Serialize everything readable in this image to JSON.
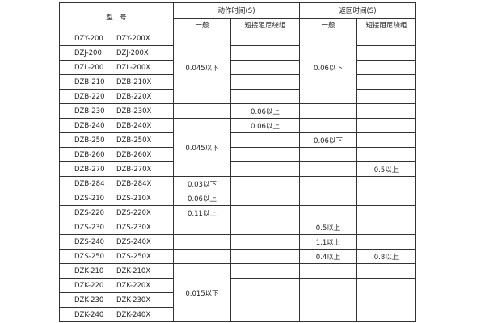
{
  "header": {
    "model": "型　号",
    "action_time": "动作时间(S)",
    "return_time": "返回时间(S)",
    "general": "一般",
    "short_damping": "短接阻尼绕组"
  },
  "rows": [
    {
      "models": [
        "DZY-200",
        "DZY-200X"
      ],
      "cells": [
        {
          "t": "0.045以下",
          "rs": 5
        },
        {
          "t": ""
        },
        {
          "t": "0.06以下",
          "rs": 5
        },
        {
          "t": ""
        }
      ]
    },
    {
      "models": [
        "DZJ-200",
        "DZJ-200X"
      ],
      "cells": [
        null,
        {
          "t": ""
        },
        null,
        {
          "t": ""
        }
      ]
    },
    {
      "models": [
        "DZL-200",
        "DZL-200X"
      ],
      "cells": [
        null,
        {
          "t": ""
        },
        null,
        {
          "t": ""
        }
      ]
    },
    {
      "models": [
        "DZB-210",
        "DZB-210X"
      ],
      "cells": [
        null,
        {
          "t": ""
        },
        null,
        {
          "t": ""
        }
      ]
    },
    {
      "models": [
        "DZB-220",
        "DZB-220X"
      ],
      "cells": [
        null,
        {
          "t": ""
        },
        null,
        {
          "t": ""
        }
      ]
    },
    {
      "models": [
        "DZB-230",
        "DZB-230X"
      ],
      "cells": [
        {
          "t": ""
        },
        {
          "t": "0.06以上"
        },
        {
          "t": ""
        },
        {
          "t": ""
        }
      ]
    },
    {
      "models": [
        "DZB-240",
        "DZB-240X"
      ],
      "cells": [
        {
          "t": "0.045以下",
          "rs": 4
        },
        {
          "t": "0.06以上"
        },
        {
          "t": ""
        },
        {
          "t": ""
        }
      ]
    },
    {
      "models": [
        "DZB-250",
        "DZB-250X"
      ],
      "cells": [
        null,
        {
          "t": ""
        },
        {
          "t": "0.06以下"
        },
        {
          "t": ""
        }
      ]
    },
    {
      "models": [
        "DZB-260",
        "DZB-260X"
      ],
      "cells": [
        null,
        {
          "t": ""
        },
        {
          "t": ""
        },
        {
          "t": ""
        }
      ]
    },
    {
      "models": [
        "DZB-270",
        "DZB-270X"
      ],
      "cells": [
        null,
        {
          "t": ""
        },
        {
          "t": ""
        },
        {
          "t": "0.5以上"
        }
      ]
    },
    {
      "models": [
        "DZB-284",
        "DZB-284X"
      ],
      "cells": [
        {
          "t": "0.03以下"
        },
        {
          "t": ""
        },
        {
          "t": ""
        },
        {
          "t": ""
        }
      ]
    },
    {
      "models": [
        "DZS-210",
        "DZS-210X"
      ],
      "cells": [
        {
          "t": "0.06以上"
        },
        {
          "t": ""
        },
        {
          "t": ""
        },
        {
          "t": ""
        }
      ]
    },
    {
      "models": [
        "DZS-220",
        "DZS-220X"
      ],
      "cells": [
        {
          "t": "0.11以上"
        },
        {
          "t": ""
        },
        {
          "t": ""
        },
        {
          "t": ""
        }
      ]
    },
    {
      "models": [
        "DZS-230",
        "DZS-230X"
      ],
      "cells": [
        {
          "t": ""
        },
        {
          "t": ""
        },
        {
          "t": "0.5以上"
        },
        {
          "t": ""
        }
      ]
    },
    {
      "models": [
        "DZS-240",
        "DZS-240X"
      ],
      "cells": [
        {
          "t": ""
        },
        {
          "t": ""
        },
        {
          "t": "1.1以上"
        },
        {
          "t": ""
        }
      ]
    },
    {
      "models": [
        "DZS-250",
        "DZS-250X"
      ],
      "cells": [
        {
          "t": ""
        },
        {
          "t": ""
        },
        {
          "t": "0.4以上"
        },
        {
          "t": "0.8以上"
        }
      ]
    },
    {
      "models": [
        "DZK-210",
        "DZK-210X"
      ],
      "cells": [
        {
          "t": "0.015以下",
          "rs": 4
        },
        {
          "t": ""
        },
        {
          "t": ""
        },
        {
          "t": ""
        }
      ]
    },
    {
      "models": [
        "DZK-220",
        "DZK-220X"
      ],
      "cells": [
        null,
        {
          "t": "",
          "rs": 3
        },
        {
          "t": "",
          "rs": 3
        },
        {
          "t": "",
          "rs": 3
        }
      ]
    },
    {
      "models": [
        "DZK-230",
        "DZK-230X"
      ],
      "cells": [
        null,
        null,
        null,
        null
      ]
    },
    {
      "models": [
        "DZK-240",
        "DZK-240X"
      ],
      "cells": [
        null,
        null,
        null,
        null
      ]
    }
  ]
}
